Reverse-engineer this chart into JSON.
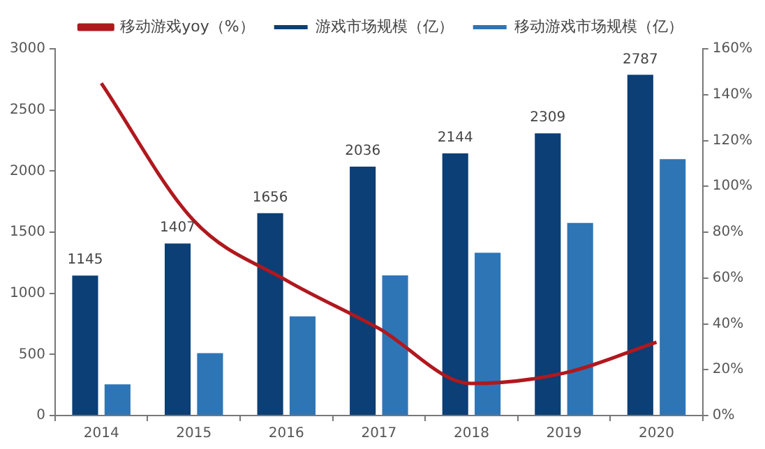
{
  "chart_data": {
    "type": "bar",
    "categories": [
      "2014",
      "2015",
      "2016",
      "2017",
      "2018",
      "2019",
      "2020"
    ],
    "series": [
      {
        "name": "游戏市场规模（亿）",
        "color": "#0b3f75",
        "values": [
          1145,
          1407,
          1656,
          2036,
          2144,
          2309,
          2787
        ],
        "value_labels": [
          "1145",
          "1407",
          "1656",
          "2036",
          "2144",
          "2309",
          "2787"
        ]
      },
      {
        "name": "移动游戏市场规模（亿）",
        "color": "#2e75b6",
        "values": [
          255,
          510,
          811,
          1147,
          1332,
          1575,
          2097
        ]
      },
      {
        "name": "移动游戏yoy（%）",
        "type": "line",
        "axis": "y2",
        "color": "#b0181e",
        "marker": "none",
        "values": [
          145,
          85,
          59,
          38,
          14,
          18.5,
          32
        ]
      }
    ],
    "ylim": [
      0,
      3000
    ],
    "yticks": [
      0,
      500,
      1000,
      1500,
      2000,
      2500,
      3000
    ],
    "y2lim": [
      0,
      160
    ],
    "y2ticks": [
      {
        "value": 0,
        "label": "0%"
      },
      {
        "value": 20,
        "label": "20%"
      },
      {
        "value": 40,
        "label": "40%"
      },
      {
        "value": 60,
        "label": "60%"
      },
      {
        "value": 80,
        "label": "80%"
      },
      {
        "value": 100,
        "label": "100%"
      },
      {
        "value": 120,
        "label": "120%"
      },
      {
        "value": 140,
        "label": "140%"
      },
      {
        "value": 160,
        "label": "160%"
      }
    ],
    "grid": false,
    "legend": "top"
  }
}
